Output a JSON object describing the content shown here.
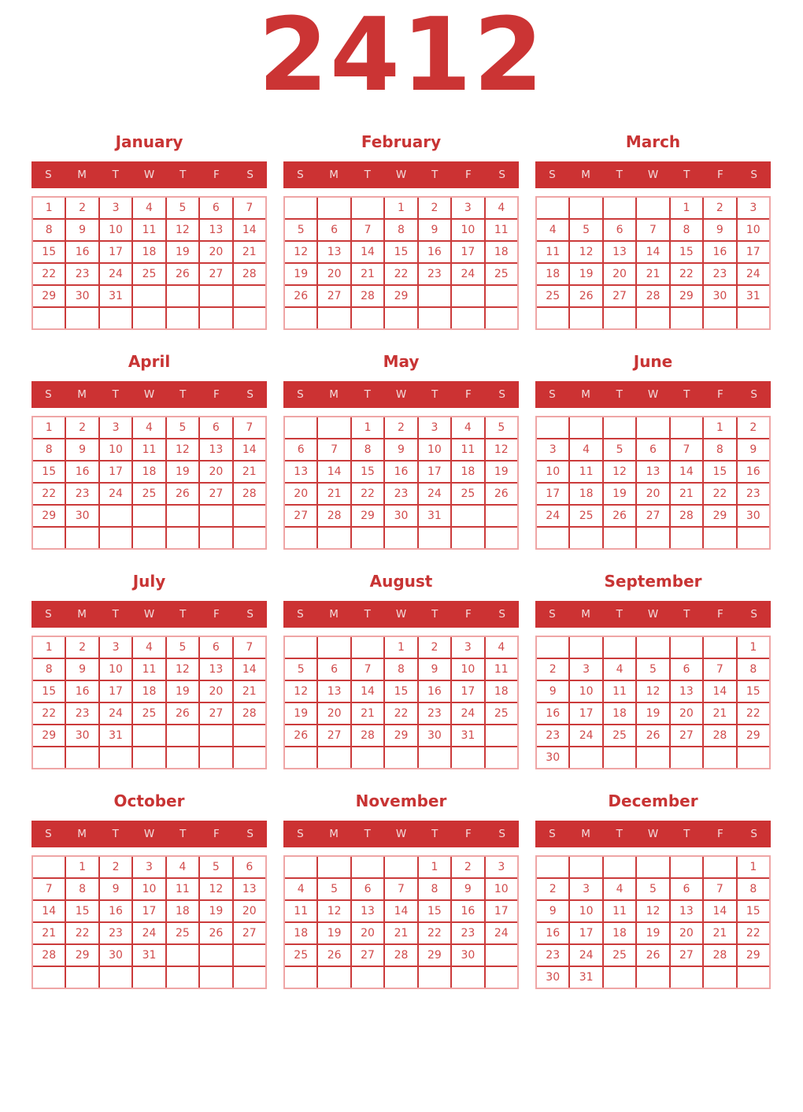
{
  "title": "2412",
  "weekday_headers": [
    "S",
    "M",
    "T",
    "W",
    "T",
    "F",
    "S"
  ],
  "colors": {
    "year_title_text": "#cb3434",
    "month_title_text": "#c83434",
    "header_band": "#cc3233",
    "header_text": "#f3dcdc",
    "grid_inner_line": "#cb3b3b",
    "grid_outer_border": "#efa6a6",
    "date_text": "#d04b4b",
    "background": "#ffffff"
  },
  "months": [
    {
      "name": "January",
      "weeks": [
        [
          "1",
          "2",
          "3",
          "4",
          "5",
          "6",
          "7"
        ],
        [
          "8",
          "9",
          "10",
          "11",
          "12",
          "13",
          "14"
        ],
        [
          "15",
          "16",
          "17",
          "18",
          "19",
          "20",
          "21"
        ],
        [
          "22",
          "23",
          "24",
          "25",
          "26",
          "27",
          "28"
        ],
        [
          "29",
          "30",
          "31",
          "",
          "",
          "",
          ""
        ],
        [
          "",
          "",
          "",
          "",
          "",
          "",
          ""
        ]
      ]
    },
    {
      "name": "February",
      "weeks": [
        [
          "",
          "",
          "",
          "1",
          "2",
          "3",
          "4"
        ],
        [
          "5",
          "6",
          "7",
          "8",
          "9",
          "10",
          "11"
        ],
        [
          "12",
          "13",
          "14",
          "15",
          "16",
          "17",
          "18"
        ],
        [
          "19",
          "20",
          "21",
          "22",
          "23",
          "24",
          "25"
        ],
        [
          "26",
          "27",
          "28",
          "29",
          "",
          "",
          ""
        ],
        [
          "",
          "",
          "",
          "",
          "",
          "",
          ""
        ]
      ]
    },
    {
      "name": "March",
      "weeks": [
        [
          "",
          "",
          "",
          "",
          "1",
          "2",
          "3"
        ],
        [
          "4",
          "5",
          "6",
          "7",
          "8",
          "9",
          "10"
        ],
        [
          "11",
          "12",
          "13",
          "14",
          "15",
          "16",
          "17"
        ],
        [
          "18",
          "19",
          "20",
          "21",
          "22",
          "23",
          "24"
        ],
        [
          "25",
          "26",
          "27",
          "28",
          "29",
          "30",
          "31"
        ],
        [
          "",
          "",
          "",
          "",
          "",
          "",
          ""
        ]
      ]
    },
    {
      "name": "April",
      "weeks": [
        [
          "1",
          "2",
          "3",
          "4",
          "5",
          "6",
          "7"
        ],
        [
          "8",
          "9",
          "10",
          "11",
          "12",
          "13",
          "14"
        ],
        [
          "15",
          "16",
          "17",
          "18",
          "19",
          "20",
          "21"
        ],
        [
          "22",
          "23",
          "24",
          "25",
          "26",
          "27",
          "28"
        ],
        [
          "29",
          "30",
          "",
          "",
          "",
          "",
          ""
        ],
        [
          "",
          "",
          "",
          "",
          "",
          "",
          ""
        ]
      ]
    },
    {
      "name": "May",
      "weeks": [
        [
          "",
          "",
          "1",
          "2",
          "3",
          "4",
          "5"
        ],
        [
          "6",
          "7",
          "8",
          "9",
          "10",
          "11",
          "12"
        ],
        [
          "13",
          "14",
          "15",
          "16",
          "17",
          "18",
          "19"
        ],
        [
          "20",
          "21",
          "22",
          "23",
          "24",
          "25",
          "26"
        ],
        [
          "27",
          "28",
          "29",
          "30",
          "31",
          "",
          ""
        ],
        [
          "",
          "",
          "",
          "",
          "",
          "",
          ""
        ]
      ]
    },
    {
      "name": "June",
      "weeks": [
        [
          "",
          "",
          "",
          "",
          "",
          "1",
          "2"
        ],
        [
          "3",
          "4",
          "5",
          "6",
          "7",
          "8",
          "9"
        ],
        [
          "10",
          "11",
          "12",
          "13",
          "14",
          "15",
          "16"
        ],
        [
          "17",
          "18",
          "19",
          "20",
          "21",
          "22",
          "23"
        ],
        [
          "24",
          "25",
          "26",
          "27",
          "28",
          "29",
          "30"
        ],
        [
          "",
          "",
          "",
          "",
          "",
          "",
          ""
        ]
      ]
    },
    {
      "name": "July",
      "weeks": [
        [
          "1",
          "2",
          "3",
          "4",
          "5",
          "6",
          "7"
        ],
        [
          "8",
          "9",
          "10",
          "11",
          "12",
          "13",
          "14"
        ],
        [
          "15",
          "16",
          "17",
          "18",
          "19",
          "20",
          "21"
        ],
        [
          "22",
          "23",
          "24",
          "25",
          "26",
          "27",
          "28"
        ],
        [
          "29",
          "30",
          "31",
          "",
          "",
          "",
          ""
        ],
        [
          "",
          "",
          "",
          "",
          "",
          "",
          ""
        ]
      ]
    },
    {
      "name": "August",
      "weeks": [
        [
          "",
          "",
          "",
          "1",
          "2",
          "3",
          "4"
        ],
        [
          "5",
          "6",
          "7",
          "8",
          "9",
          "10",
          "11"
        ],
        [
          "12",
          "13",
          "14",
          "15",
          "16",
          "17",
          "18"
        ],
        [
          "19",
          "20",
          "21",
          "22",
          "23",
          "24",
          "25"
        ],
        [
          "26",
          "27",
          "28",
          "29",
          "30",
          "31",
          ""
        ],
        [
          "",
          "",
          "",
          "",
          "",
          "",
          ""
        ]
      ]
    },
    {
      "name": "September",
      "weeks": [
        [
          "",
          "",
          "",
          "",
          "",
          "",
          "1"
        ],
        [
          "2",
          "3",
          "4",
          "5",
          "6",
          "7",
          "8"
        ],
        [
          "9",
          "10",
          "11",
          "12",
          "13",
          "14",
          "15"
        ],
        [
          "16",
          "17",
          "18",
          "19",
          "20",
          "21",
          "22"
        ],
        [
          "23",
          "24",
          "25",
          "26",
          "27",
          "28",
          "29"
        ],
        [
          "30",
          "",
          "",
          "",
          "",
          "",
          ""
        ]
      ]
    },
    {
      "name": "October",
      "weeks": [
        [
          "",
          "1",
          "2",
          "3",
          "4",
          "5",
          "6"
        ],
        [
          "7",
          "8",
          "9",
          "10",
          "11",
          "12",
          "13"
        ],
        [
          "14",
          "15",
          "16",
          "17",
          "18",
          "19",
          "20"
        ],
        [
          "21",
          "22",
          "23",
          "24",
          "25",
          "26",
          "27"
        ],
        [
          "28",
          "29",
          "30",
          "31",
          "",
          "",
          ""
        ],
        [
          "",
          "",
          "",
          "",
          "",
          "",
          ""
        ]
      ]
    },
    {
      "name": "November",
      "weeks": [
        [
          "",
          "",
          "",
          "",
          "1",
          "2",
          "3"
        ],
        [
          "4",
          "5",
          "6",
          "7",
          "8",
          "9",
          "10"
        ],
        [
          "11",
          "12",
          "13",
          "14",
          "15",
          "16",
          "17"
        ],
        [
          "18",
          "19",
          "20",
          "21",
          "22",
          "23",
          "24"
        ],
        [
          "25",
          "26",
          "27",
          "28",
          "29",
          "30",
          ""
        ],
        [
          "",
          "",
          "",
          "",
          "",
          "",
          ""
        ]
      ]
    },
    {
      "name": "December",
      "weeks": [
        [
          "",
          "",
          "",
          "",
          "",
          "",
          "1"
        ],
        [
          "2",
          "3",
          "4",
          "5",
          "6",
          "7",
          "8"
        ],
        [
          "9",
          "10",
          "11",
          "12",
          "13",
          "14",
          "15"
        ],
        [
          "16",
          "17",
          "18",
          "19",
          "20",
          "21",
          "22"
        ],
        [
          "23",
          "24",
          "25",
          "26",
          "27",
          "28",
          "29"
        ],
        [
          "30",
          "31",
          "",
          "",
          "",
          "",
          ""
        ]
      ]
    }
  ]
}
